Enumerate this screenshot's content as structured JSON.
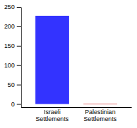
{
  "chart_data": {
    "type": "bar",
    "categories": [
      "Israeli\nSettlements",
      "Palestinian\nSettlements"
    ],
    "values": [
      227,
      1
    ],
    "colors": [
      "#3333ff",
      "#cc0000"
    ],
    "ylim": [
      -8,
      250
    ],
    "yticks": [
      0,
      50,
      100,
      150,
      200,
      250
    ],
    "grid": false
  }
}
